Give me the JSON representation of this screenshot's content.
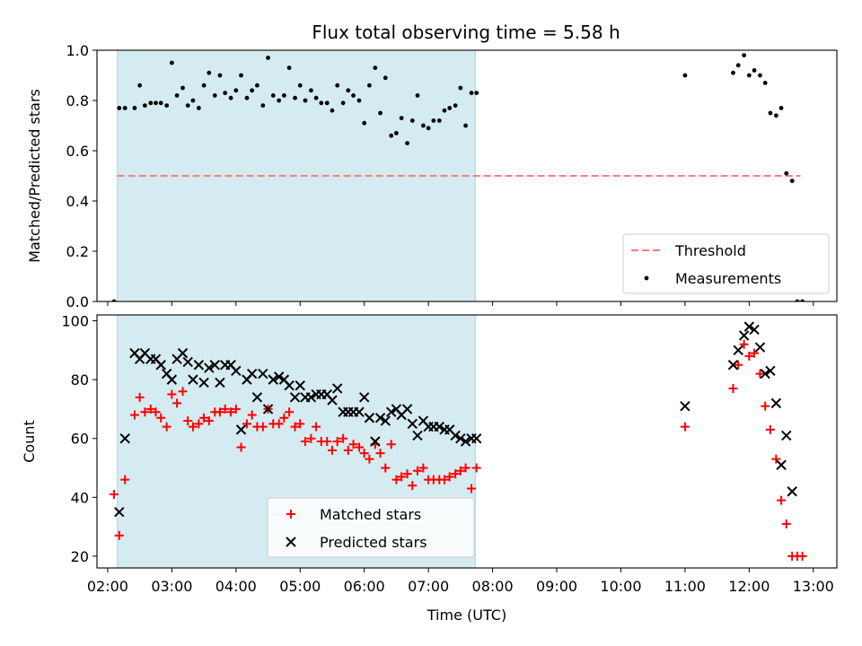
{
  "title": "Flux total observing time = 5.58 h",
  "chart_data": [
    {
      "type": "scatter",
      "panel": "top",
      "ylabel": "Matched/Predicted stars",
      "xlabel": "",
      "xlim": [
        1.833,
        13.367
      ],
      "ylim": [
        0.0,
        1.0
      ],
      "yticks": [
        0.0,
        0.2,
        0.4,
        0.6,
        0.8,
        1.0
      ],
      "ytick_labels": [
        "0.0",
        "0.2",
        "0.4",
        "0.6",
        "0.8",
        "1.0"
      ],
      "shaded_span": [
        2.15,
        7.73
      ],
      "shade_color": "#d4ebf1",
      "legend": "lower-right",
      "series": [
        {
          "name": "Threshold",
          "style": "dashed-line",
          "color": "#f87f7f",
          "x": [
            2.15,
            12.8
          ],
          "y": [
            0.5,
            0.5
          ]
        },
        {
          "name": "Measurements",
          "style": "dot",
          "color": "#000000",
          "x": [
            2.1,
            2.18,
            2.27,
            2.42,
            2.5,
            2.58,
            2.67,
            2.75,
            2.83,
            2.92,
            3.0,
            3.08,
            3.17,
            3.25,
            3.33,
            3.42,
            3.5,
            3.58,
            3.67,
            3.75,
            3.83,
            3.92,
            4.0,
            4.08,
            4.17,
            4.25,
            4.33,
            4.42,
            4.5,
            4.58,
            4.67,
            4.75,
            4.83,
            4.92,
            5.0,
            5.08,
            5.17,
            5.25,
            5.33,
            5.42,
            5.5,
            5.58,
            5.67,
            5.75,
            5.83,
            5.92,
            6.0,
            6.08,
            6.17,
            6.25,
            6.33,
            6.42,
            6.5,
            6.58,
            6.67,
            6.75,
            6.83,
            6.92,
            7.0,
            7.08,
            7.17,
            7.25,
            7.33,
            7.42,
            7.5,
            7.58,
            7.67,
            7.75,
            11.0,
            11.75,
            11.83,
            11.92,
            12.0,
            12.08,
            12.17,
            12.25,
            12.33,
            12.42,
            12.5,
            12.58,
            12.67,
            12.75,
            12.83
          ],
          "y": [
            0.0,
            0.77,
            0.77,
            0.77,
            0.86,
            0.78,
            0.79,
            0.79,
            0.79,
            0.78,
            0.95,
            0.82,
            0.85,
            0.78,
            0.8,
            0.77,
            0.86,
            0.91,
            0.82,
            0.9,
            0.83,
            0.81,
            0.84,
            0.9,
            0.81,
            0.84,
            0.86,
            0.78,
            0.97,
            0.82,
            0.8,
            0.82,
            0.93,
            0.81,
            0.86,
            0.8,
            0.84,
            0.81,
            0.79,
            0.79,
            0.76,
            0.86,
            0.79,
            0.84,
            0.82,
            0.8,
            0.71,
            0.86,
            0.93,
            0.75,
            0.89,
            0.66,
            0.67,
            0.73,
            0.63,
            0.72,
            0.82,
            0.7,
            0.69,
            0.72,
            0.72,
            0.76,
            0.77,
            0.78,
            0.85,
            0.7,
            0.83,
            0.83,
            0.9,
            0.91,
            0.94,
            0.98,
            0.9,
            0.92,
            0.9,
            0.87,
            0.75,
            0.74,
            0.77,
            0.51,
            0.48,
            0.0,
            0.0
          ]
        }
      ]
    },
    {
      "type": "scatter",
      "panel": "bottom",
      "ylabel": "Count",
      "xlabel": "Time (UTC)",
      "xlim": [
        1.833,
        13.367
      ],
      "ylim": [
        16,
        102
      ],
      "yticks": [
        20,
        40,
        60,
        80,
        100
      ],
      "ytick_labels": [
        "20",
        "40",
        "60",
        "80",
        "100"
      ],
      "xticks": [
        2,
        3,
        4,
        5,
        6,
        7,
        8,
        9,
        10,
        11,
        12,
        13
      ],
      "xtick_labels": [
        "02:00",
        "03:00",
        "04:00",
        "05:00",
        "06:00",
        "07:00",
        "08:00",
        "09:00",
        "10:00",
        "11:00",
        "12:00",
        "13:00"
      ],
      "shaded_span": [
        2.15,
        7.73
      ],
      "shade_color": "#d4ebf1",
      "legend": "lower-center",
      "series": [
        {
          "name": "Matched stars",
          "style": "plus",
          "color": "#ff0000",
          "x": [
            2.1,
            2.18,
            2.27,
            2.42,
            2.5,
            2.58,
            2.67,
            2.75,
            2.83,
            2.92,
            3.0,
            3.08,
            3.17,
            3.25,
            3.33,
            3.42,
            3.5,
            3.58,
            3.67,
            3.75,
            3.83,
            3.92,
            4.0,
            4.08,
            4.17,
            4.25,
            4.33,
            4.42,
            4.5,
            4.58,
            4.67,
            4.75,
            4.83,
            4.92,
            5.0,
            5.08,
            5.17,
            5.25,
            5.33,
            5.42,
            5.5,
            5.58,
            5.67,
            5.75,
            5.83,
            5.92,
            6.0,
            6.08,
            6.17,
            6.25,
            6.33,
            6.42,
            6.5,
            6.58,
            6.67,
            6.75,
            6.83,
            6.92,
            7.0,
            7.08,
            7.17,
            7.25,
            7.33,
            7.42,
            7.5,
            7.58,
            7.67,
            7.75,
            11.0,
            11.75,
            11.83,
            11.92,
            12.0,
            12.08,
            12.17,
            12.25,
            12.33,
            12.42,
            12.5,
            12.58,
            12.67,
            12.75,
            12.83
          ],
          "y": [
            41,
            27,
            46,
            68,
            74,
            69,
            70,
            69,
            67,
            64,
            75,
            72,
            76,
            66,
            64,
            65,
            67,
            66,
            69,
            69,
            70,
            69,
            70,
            57,
            65,
            68,
            64,
            64,
            70,
            65,
            65,
            67,
            69,
            64,
            65,
            59,
            60,
            64,
            59,
            59,
            56,
            59,
            60,
            56,
            58,
            57,
            55,
            53,
            58,
            55,
            50,
            58,
            46,
            47,
            48,
            44,
            49,
            50,
            46,
            46,
            46,
            46,
            47,
            48,
            49,
            50,
            43,
            50,
            64,
            77,
            85,
            92,
            88,
            89,
            82,
            71,
            63,
            53,
            39,
            31,
            20,
            20,
            20
          ]
        },
        {
          "name": "Predicted stars",
          "style": "x",
          "color": "#000000",
          "x": [
            2.18,
            2.27,
            2.42,
            2.5,
            2.58,
            2.67,
            2.75,
            2.83,
            2.92,
            3.0,
            3.08,
            3.17,
            3.25,
            3.33,
            3.42,
            3.5,
            3.58,
            3.67,
            3.75,
            3.83,
            3.92,
            4.0,
            4.08,
            4.17,
            4.25,
            4.33,
            4.42,
            4.5,
            4.58,
            4.67,
            4.75,
            4.83,
            4.92,
            5.0,
            5.08,
            5.17,
            5.25,
            5.33,
            5.42,
            5.5,
            5.58,
            5.67,
            5.75,
            5.83,
            5.92,
            6.0,
            6.08,
            6.17,
            6.25,
            6.33,
            6.42,
            6.5,
            6.58,
            6.67,
            6.75,
            6.83,
            6.92,
            7.0,
            7.08,
            7.17,
            7.25,
            7.33,
            7.42,
            7.5,
            7.58,
            7.67,
            7.75,
            11.0,
            11.75,
            11.83,
            11.92,
            12.0,
            12.08,
            12.17,
            12.25,
            12.33,
            12.42,
            12.5,
            12.58,
            12.67
          ],
          "y": [
            35,
            60,
            89,
            87,
            89,
            87,
            87,
            85,
            82,
            80,
            87,
            89,
            86,
            80,
            85,
            79,
            84,
            85,
            79,
            85,
            85,
            83,
            63,
            80,
            82,
            74,
            82,
            70,
            80,
            81,
            80,
            78,
            74,
            78,
            74,
            74,
            75,
            75,
            75,
            73,
            77,
            69,
            69,
            69,
            69,
            74,
            67,
            59,
            67,
            66,
            69,
            70,
            68,
            70,
            65,
            61,
            66,
            64,
            64,
            64,
            63,
            63,
            61,
            60,
            59,
            60,
            60,
            71,
            85,
            90,
            95,
            98,
            97,
            91,
            82,
            83,
            72,
            51,
            61,
            42
          ]
        }
      ]
    }
  ]
}
